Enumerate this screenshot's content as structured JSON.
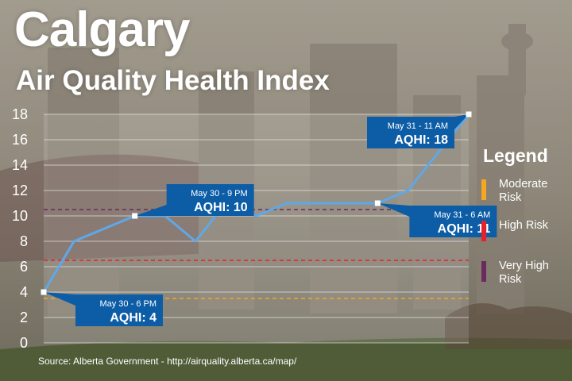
{
  "title": "Calgary",
  "subtitle": "Air Quality Health Index",
  "source": "Source: Alberta Government - http://airquality.alberta.ca/map/",
  "legend": {
    "title": "Legend",
    "items": [
      {
        "label": "Moderate Risk",
        "color": "#f5a623"
      },
      {
        "label": "High Risk",
        "color": "#e8202a"
      },
      {
        "label": "Very High Risk",
        "color": "#6a2a5e"
      }
    ]
  },
  "chart_data": {
    "type": "line",
    "ylim": [
      0,
      18
    ],
    "yticks": [
      "0",
      "2",
      "4",
      "6",
      "8",
      "10",
      "12",
      "14",
      "16",
      "18"
    ],
    "grid": true,
    "series": [
      {
        "values": [
          4,
          8,
          9,
          10,
          10,
          8,
          11,
          10,
          11,
          11,
          11,
          11,
          12,
          15,
          18
        ]
      }
    ],
    "thresholds": [
      {
        "value": 3.5,
        "color": "#f5a623"
      },
      {
        "value": 6.5,
        "color": "#e8202a"
      },
      {
        "value": 10.5,
        "color": "#6a2a5e"
      }
    ],
    "callouts": [
      {
        "index": 0,
        "time": "May 30 - 6 PM",
        "value": "AQHI: 4",
        "side": "right-below"
      },
      {
        "index": 3,
        "time": "May 30 - 9 PM",
        "value": "AQHI: 10",
        "side": "right-above"
      },
      {
        "index": 11,
        "time": "May 31 - 6 AM",
        "value": "AQHI: 11",
        "side": "right-below"
      },
      {
        "index": 14,
        "time": "May 31 - 11 AM",
        "value": "AQHI: 18",
        "side": "left-below"
      }
    ],
    "line_color": "#5fa8e8",
    "plot_color": "#ffffff"
  }
}
